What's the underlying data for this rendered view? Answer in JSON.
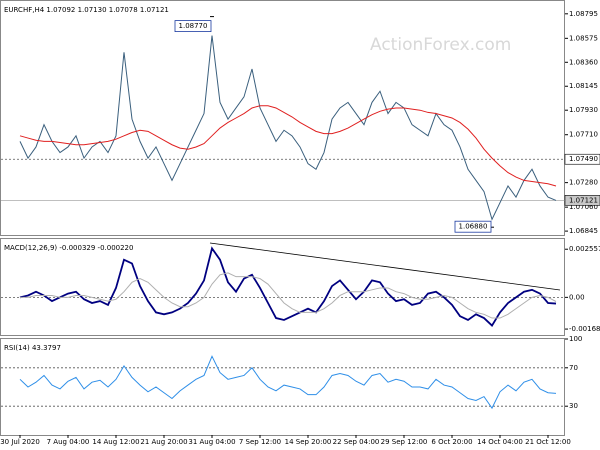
{
  "chart_data": [
    {
      "type": "line",
      "title": "EURCHF,H4 1.07092 1.07130 1.07078 1.07121",
      "watermark": "ActionForex.com",
      "series": [
        {
          "color": "#3a5f7d",
          "values": [
            1.0765,
            1.075,
            1.076,
            1.078,
            1.0765,
            1.0755,
            1.076,
            1.077,
            1.075,
            1.076,
            1.0765,
            1.0755,
            1.077,
            1.0845,
            1.0785,
            1.0765,
            1.075,
            1.076,
            1.0745,
            1.073,
            1.0745,
            1.076,
            1.0775,
            1.079,
            1.086,
            1.08,
            1.0785,
            1.0795,
            1.0805,
            1.083,
            1.0795,
            1.078,
            1.0765,
            1.0775,
            1.077,
            1.076,
            1.0745,
            1.074,
            1.0755,
            1.0785,
            1.0795,
            1.08,
            1.079,
            1.078,
            1.08,
            1.081,
            1.079,
            1.08,
            1.0795,
            1.078,
            1.0775,
            1.077,
            1.079,
            1.078,
            1.0775,
            1.076,
            1.074,
            1.073,
            1.072,
            1.0695,
            1.071,
            1.0725,
            1.0715,
            1.073,
            1.074,
            1.0725,
            1.0715,
            1.0712
          ]
        },
        {
          "color": "#e02020",
          "values": [
            1.077,
            1.0768,
            1.0766,
            1.0765,
            1.0765,
            1.0764,
            1.0763,
            1.0762,
            1.0762,
            1.0763,
            1.0764,
            1.0765,
            1.0767,
            1.077,
            1.0773,
            1.0775,
            1.0774,
            1.077,
            1.0766,
            1.0762,
            1.0759,
            1.0758,
            1.076,
            1.0763,
            1.077,
            1.0777,
            1.0782,
            1.0786,
            1.079,
            1.0795,
            1.0797,
            1.0797,
            1.0795,
            1.0791,
            1.0787,
            1.0782,
            1.0778,
            1.0774,
            1.0772,
            1.0772,
            1.0774,
            1.0777,
            1.0781,
            1.0785,
            1.0789,
            1.0792,
            1.0794,
            1.0795,
            1.0795,
            1.0794,
            1.0793,
            1.0791,
            1.079,
            1.0788,
            1.0786,
            1.0782,
            1.0776,
            1.0768,
            1.0758,
            1.075,
            1.0743,
            1.0737,
            1.0733,
            1.073,
            1.0729,
            1.0728,
            1.0727,
            1.0725
          ]
        }
      ],
      "ylim": [
        1.0681,
        1.0891
      ],
      "yticks": [
        {
          "value": 1.08795,
          "label": "1.08795"
        },
        {
          "value": 1.08575,
          "label": "1.08575"
        },
        {
          "value": 1.0836,
          "label": "1.08360"
        },
        {
          "value": 1.08145,
          "label": "1.08145"
        },
        {
          "value": 1.0793,
          "label": "1.07930"
        },
        {
          "value": 1.0771,
          "label": "1.07710"
        },
        {
          "value": 1.0728,
          "label": "1.07280"
        },
        {
          "value": 1.0706,
          "label": "1.07060"
        },
        {
          "value": 1.06845,
          "label": "1.06845"
        }
      ],
      "levels": [
        {
          "value": 1.0749,
          "label": "1.07490",
          "dashed": true
        },
        {
          "value": 1.07121,
          "label": "1.07121",
          "dashed": false
        }
      ],
      "annotations": [
        {
          "value": 1.0877,
          "label": "1.08770",
          "index": 24
        },
        {
          "value": 1.0688,
          "label": "1.06880",
          "index": 59
        }
      ]
    },
    {
      "type": "line",
      "title": "MACD(12,26,9) -0.000329 -0.000220",
      "series": [
        {
          "color": "#000080",
          "values": [
            0.0,
            0.0001,
            0.0003,
            0.0001,
            -0.0002,
            0.0,
            0.0002,
            0.0003,
            -0.0001,
            -0.0003,
            -0.0002,
            -0.0004,
            0.0005,
            0.002,
            0.0018,
            0.0006,
            -0.0002,
            -0.0008,
            -0.0009,
            -0.0008,
            -0.0006,
            -0.0003,
            0.0002,
            0.0009,
            0.0026,
            0.002,
            0.0008,
            0.0003,
            0.001,
            0.0012,
            0.0005,
            -0.0003,
            -0.0011,
            -0.0012,
            -0.001,
            -0.0008,
            -0.0006,
            -0.0008,
            -0.0002,
            0.0006,
            0.0009,
            0.0004,
            -0.0001,
            0.0003,
            0.0009,
            0.0008,
            0.0002,
            -0.0002,
            -0.0001,
            -0.0004,
            -0.0003,
            0.0002,
            0.0003,
            0.0,
            -0.0004,
            -0.001,
            -0.0012,
            -0.0009,
            -0.0011,
            -0.0015,
            -0.0008,
            -0.0003,
            0.0,
            0.0003,
            0.0004,
            0.0002,
            -0.0003,
            -0.000329
          ]
        },
        {
          "color": "#b0b0b0",
          "values": [
            0.0,
            0.0,
            0.0001,
            0.0001,
            0.0001,
            0.0,
            0.0,
            0.0001,
            0.0001,
            0.0,
            -0.0001,
            -0.0002,
            -0.0001,
            0.0003,
            0.0008,
            0.001,
            0.0008,
            0.0004,
            0.0,
            -0.0003,
            -0.0005,
            -0.0005,
            -0.0003,
            0.0,
            0.0007,
            0.0012,
            0.0013,
            0.0011,
            0.0011,
            0.0011,
            0.001,
            0.0007,
            0.0002,
            -0.0003,
            -0.0006,
            -0.0008,
            -0.0008,
            -0.0008,
            -0.0006,
            -0.0003,
            0.0001,
            0.0003,
            0.0003,
            0.0003,
            0.0004,
            0.0005,
            0.0005,
            0.0003,
            0.0002,
            0.0,
            -0.0001,
            -0.0001,
            0.0,
            0.0001,
            0.0,
            -0.0003,
            -0.0006,
            -0.0008,
            -0.0009,
            -0.0011,
            -0.0011,
            -0.0009,
            -0.0006,
            -0.0003,
            0.0,
            0.0001,
            0.0,
            -0.00022
          ]
        }
      ],
      "ylim": [
        -0.002,
        0.0031
      ],
      "yticks": [
        0.002557,
        {
          "value": 0,
          "label": "0.00"
        },
        -0.001685
      ],
      "levels": [
        0
      ]
    },
    {
      "type": "line",
      "title": "RSI(14) 43.3797",
      "series": [
        {
          "color": "#2f8fe8",
          "values": [
            58,
            50,
            55,
            62,
            52,
            48,
            56,
            60,
            48,
            55,
            57,
            50,
            58,
            72,
            60,
            52,
            45,
            50,
            44,
            38,
            46,
            52,
            58,
            62,
            82,
            65,
            58,
            60,
            62,
            70,
            58,
            50,
            46,
            52,
            50,
            48,
            42,
            42,
            50,
            62,
            64,
            62,
            56,
            52,
            62,
            64,
            55,
            58,
            56,
            50,
            50,
            48,
            58,
            52,
            50,
            44,
            38,
            36,
            40,
            28,
            45,
            52,
            46,
            55,
            58,
            48,
            44,
            43.3797
          ]
        }
      ],
      "ylim": [
        0,
        100
      ],
      "yticks": [
        100,
        70,
        30
      ],
      "levels": [
        70,
        30
      ],
      "xticks": [
        {
          "value": 0,
          "label": "30 Jul 2020"
        },
        {
          "value": 6,
          "label": "7 Aug 04:00"
        },
        {
          "value": 12,
          "label": "14 Aug 12:00"
        },
        {
          "value": 18,
          "label": "21 Aug 20:00"
        },
        {
          "value": 24,
          "label": "31 Aug 04:00"
        },
        {
          "value": 30,
          "label": "7 Sep 12:00"
        },
        {
          "value": 36,
          "label": "14 Sep 20:00"
        },
        {
          "value": 42,
          "label": "22 Sep 04:00"
        },
        {
          "value": 48,
          "label": "29 Sep 12:00"
        },
        {
          "value": 54,
          "label": "6 Oct 20:00"
        },
        {
          "value": 60,
          "label": "14 Oct 04:00"
        },
        {
          "value": 66,
          "label": "21 Oct 12:00"
        }
      ]
    }
  ]
}
